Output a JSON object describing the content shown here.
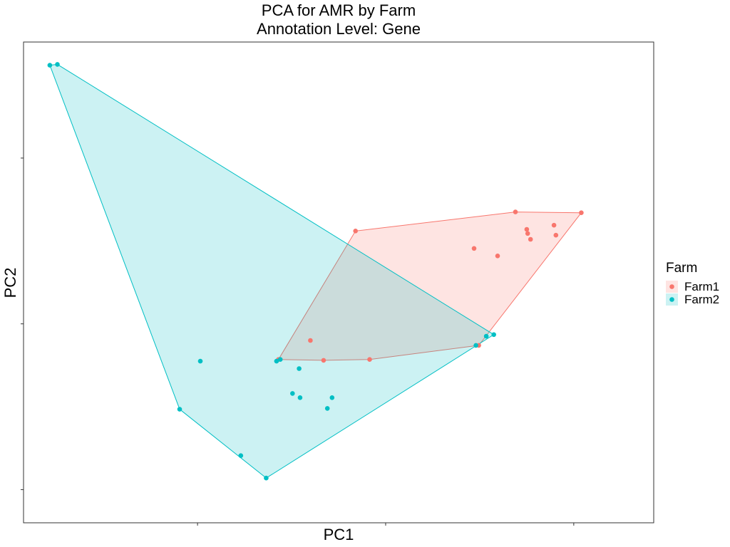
{
  "chart_data": {
    "type": "scatter",
    "title": "PCA for AMR by Farm",
    "subtitle": "Annotation Level: Gene",
    "xlabel": "PC1",
    "ylabel": "PC2",
    "xlim": [
      -3.35,
      3.35
    ],
    "ylim": [
      -2.9,
      2.9
    ],
    "x_ticks": [
      -1.5,
      0.5,
      2.5
    ],
    "y_ticks": [
      -2.5,
      -0.5,
      1.5
    ],
    "tick_labels_shown": false,
    "grid": false,
    "hulls": true,
    "legend": {
      "title": "Farm",
      "position": "right"
    },
    "series": [
      {
        "name": "Farm1",
        "color": "#F8766D",
        "points": [
          [
            -0.64,
            -0.93
          ],
          [
            -0.16,
            -0.94
          ],
          [
            0.33,
            -0.93
          ],
          [
            -0.3,
            -0.7
          ],
          [
            0.18,
            0.62
          ],
          [
            1.44,
            0.41
          ],
          [
            1.69,
            0.32
          ],
          [
            1.88,
            0.85
          ],
          [
            2.0,
            0.64
          ],
          [
            2.01,
            0.59
          ],
          [
            2.04,
            0.52
          ],
          [
            2.29,
            0.69
          ],
          [
            2.31,
            0.57
          ],
          [
            2.58,
            0.84
          ],
          [
            1.49,
            -0.76
          ]
        ]
      },
      {
        "name": "Farm2",
        "color": "#00BFC4",
        "points": [
          [
            -3.07,
            2.62
          ],
          [
            -2.99,
            2.63
          ],
          [
            -1.47,
            -0.95
          ],
          [
            -1.69,
            -1.53
          ],
          [
            -1.04,
            -2.09
          ],
          [
            -0.77,
            -2.36
          ],
          [
            -0.66,
            -0.95
          ],
          [
            -0.62,
            -0.93
          ],
          [
            -0.42,
            -1.04
          ],
          [
            -0.49,
            -1.34
          ],
          [
            -0.41,
            -1.39
          ],
          [
            -0.12,
            -1.52
          ],
          [
            -0.07,
            -1.39
          ],
          [
            1.46,
            -0.76
          ],
          [
            1.57,
            -0.65
          ],
          [
            1.65,
            -0.63
          ]
        ]
      }
    ]
  }
}
